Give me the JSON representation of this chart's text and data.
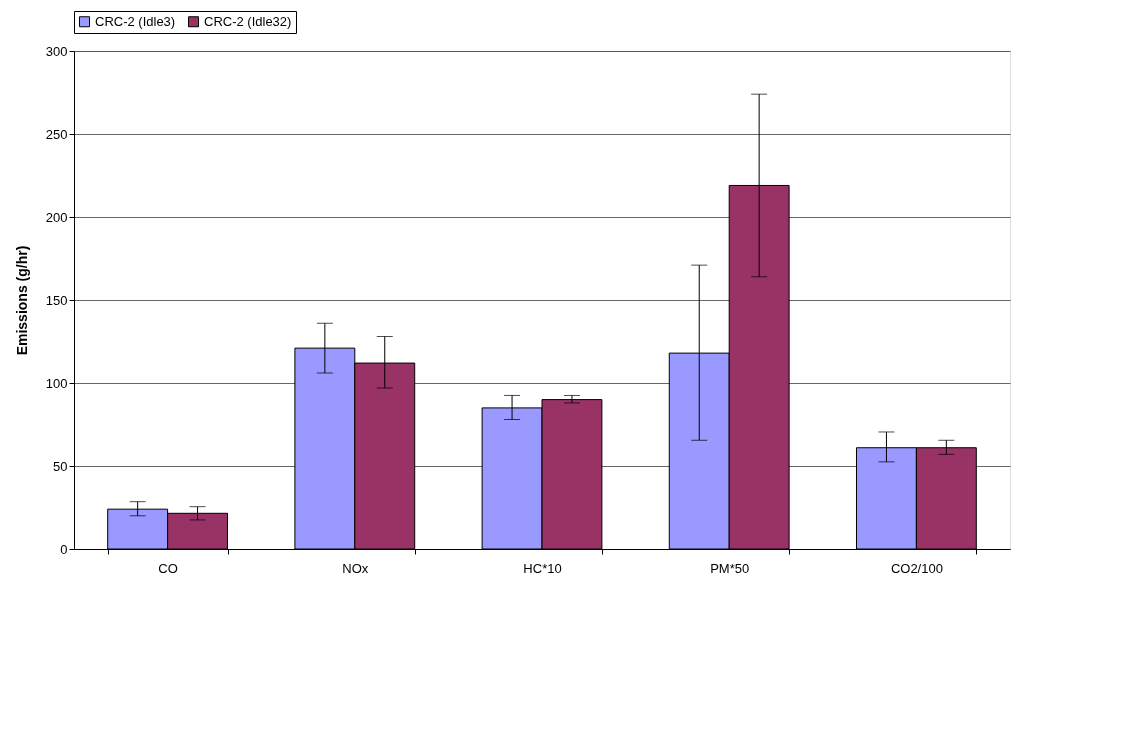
{
  "chart_data": {
    "type": "bar",
    "ylabel": "Emissions (g/hr)",
    "categories": [
      "CO",
      "NOx",
      "HC*10",
      "PM*50",
      "CO2/100"
    ],
    "series": [
      {
        "name": "CRC-2 (Idle3)",
        "color": "#9999ff",
        "values": [
          24,
          121,
          85,
          118,
          61
        ],
        "errors": [
          [
            20,
            28.5
          ],
          [
            106,
            136
          ],
          [
            78,
            92.5
          ],
          [
            65.5,
            171
          ],
          [
            52.5,
            70.5
          ]
        ]
      },
      {
        "name": "CRC-2 (Idle32)",
        "color": "#993366",
        "values": [
          21.5,
          112,
          90,
          219,
          61
        ],
        "errors": [
          [
            17.5,
            25.5
          ],
          [
            97,
            128
          ],
          [
            88,
            92.5
          ],
          [
            164,
            274
          ],
          [
            57,
            65.5
          ]
        ]
      }
    ],
    "ylim": [
      0,
      300
    ],
    "yticks": [
      0,
      50,
      100,
      150,
      200,
      250,
      300
    ],
    "grid": "y",
    "legend": "top"
  }
}
